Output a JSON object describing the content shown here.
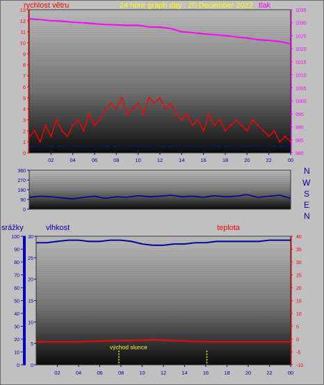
{
  "header": {
    "title": "24 hour graph day : 20 December 2022",
    "left_label": "rychlost větru",
    "right_label": "tlak"
  },
  "direction_labels": [
    "N",
    "W",
    "S",
    "E",
    "N"
  ],
  "lower_labels": {
    "rain": "srážky",
    "humidity": "vlhkost",
    "temperature": "teplota",
    "sunrise": "východ slunce"
  },
  "colors": {
    "wind": "#ff0000",
    "gust_marker": "#0000c8",
    "pressure": "#ff00ff",
    "direction": "#0000a0",
    "humidity": "#0000a0",
    "temperature": "#ff0000",
    "sun": "#ffff00"
  },
  "chart_data": [
    {
      "type": "line",
      "name": "wind-pressure",
      "x_ticks": [
        "02",
        "04",
        "06",
        "08",
        "10",
        "12",
        "14",
        "16",
        "18",
        "20",
        "22",
        "00"
      ],
      "ylabel_left": "rychlost větru",
      "ylabel_right": "tlak",
      "ylim_left": [
        0,
        13
      ],
      "yticks_left": [
        0,
        1,
        2,
        3,
        4,
        5,
        6,
        7,
        8,
        9,
        10,
        11,
        12,
        13
      ],
      "ylim_right": [
        980,
        1035
      ],
      "yticks_right": [
        980,
        985,
        990,
        995,
        1000,
        1005,
        1010,
        1015,
        1020,
        1025,
        1030,
        1035
      ],
      "series": [
        {
          "name": "tlak",
          "axis": "right",
          "x": [
            0,
            1,
            2,
            3,
            4,
            5,
            6,
            7,
            8,
            9,
            10,
            11,
            12,
            13,
            14,
            15,
            16,
            17,
            18,
            19,
            20,
            21,
            22,
            23,
            24
          ],
          "values": [
            1031.5,
            1031.2,
            1030.8,
            1030.6,
            1030.2,
            1030,
            1029.6,
            1029.3,
            1029.2,
            1029,
            1029,
            1028.4,
            1028.3,
            1027.8,
            1026.5,
            1026.2,
            1025.7,
            1025.4,
            1025.1,
            1024.5,
            1024.1,
            1023.5,
            1023.2,
            1022.8,
            1021.9
          ]
        },
        {
          "name": "rychlost větru",
          "axis": "left",
          "x": [
            0,
            0.5,
            1,
            1.5,
            2,
            2.5,
            3,
            3.5,
            4,
            4.5,
            5,
            5.5,
            6,
            6.5,
            7,
            7.5,
            8,
            8.5,
            9,
            9.5,
            10,
            10.5,
            11,
            11.5,
            12,
            12.5,
            13,
            13.5,
            14,
            14.5,
            15,
            15.5,
            16,
            16.5,
            17,
            17.5,
            18,
            18.5,
            19,
            19.5,
            20,
            20.5,
            21,
            21.5,
            22,
            22.5,
            23,
            23.5,
            24
          ],
          "values": [
            1.5,
            2,
            1,
            2.5,
            1.5,
            3,
            2,
            1.5,
            2.5,
            3,
            2,
            3.5,
            2.5,
            3,
            4,
            4.5,
            4,
            5,
            3.5,
            4,
            4.5,
            3.5,
            5,
            4.5,
            5,
            4,
            4.5,
            3.5,
            3,
            3.5,
            2.5,
            3,
            2,
            3.5,
            2.5,
            3,
            2,
            2.5,
            3,
            2.5,
            2,
            3,
            2.5,
            2,
            1.5,
            2,
            1,
            1.5,
            1
          ]
        }
      ]
    },
    {
      "type": "line",
      "name": "wind-direction",
      "ylim": [
        0,
        360
      ],
      "yticks": [
        0,
        90,
        180,
        270,
        360
      ],
      "series": [
        {
          "name": "wind direction",
          "x": [
            0,
            1,
            2,
            3,
            4,
            5,
            6,
            7,
            8,
            9,
            10,
            11,
            12,
            13,
            14,
            15,
            16,
            17,
            18,
            19,
            20,
            21,
            22,
            23,
            24
          ],
          "values": [
            110,
            120,
            115,
            105,
            95,
            110,
            120,
            100,
            115,
            110,
            125,
            115,
            120,
            130,
            115,
            120,
            110,
            125,
            115,
            120,
            135,
            110,
            120,
            130,
            100
          ]
        }
      ]
    },
    {
      "type": "line",
      "name": "rain-humidity-temperature",
      "x_ticks": [
        "02",
        "04",
        "06",
        "08",
        "10",
        "12",
        "14",
        "16",
        "18",
        "20",
        "22",
        "00"
      ],
      "rain_ylim": [
        0,
        100
      ],
      "rain_ticks": [
        0,
        10,
        20,
        30,
        40,
        50,
        60,
        70,
        80,
        90,
        100
      ],
      "humidity_ylim": [
        0,
        30
      ],
      "humidity_ticks": [
        0,
        5,
        10,
        15,
        20,
        25,
        30
      ],
      "temp_ylim": [
        -10,
        40
      ],
      "temp_ticks": [
        -10,
        -5,
        0,
        5,
        10,
        15,
        20,
        25,
        30,
        35,
        40
      ],
      "series": [
        {
          "name": "vlhkost",
          "axis": "rain",
          "x": [
            0,
            1,
            2,
            3,
            4,
            5,
            6,
            7,
            8,
            9,
            10,
            11,
            12,
            13,
            14,
            15,
            16,
            17,
            18,
            19,
            20,
            21,
            22,
            23,
            24
          ],
          "values": [
            95,
            95,
            96,
            97,
            97,
            96,
            96,
            97,
            97,
            96,
            94,
            93,
            93,
            94,
            94,
            95,
            95,
            96,
            96,
            96,
            96,
            96,
            97,
            97,
            97
          ]
        },
        {
          "name": "teplota",
          "axis": "temp",
          "x": [
            0,
            2,
            4,
            6,
            8,
            10,
            11,
            12,
            14,
            16,
            18,
            20,
            22,
            24
          ],
          "values": [
            -1,
            -1,
            -1,
            -0.8,
            -0.6,
            -0.4,
            -0.2,
            -0.4,
            -0.8,
            -1,
            -1,
            -1,
            -1,
            -1
          ]
        }
      ]
    }
  ]
}
